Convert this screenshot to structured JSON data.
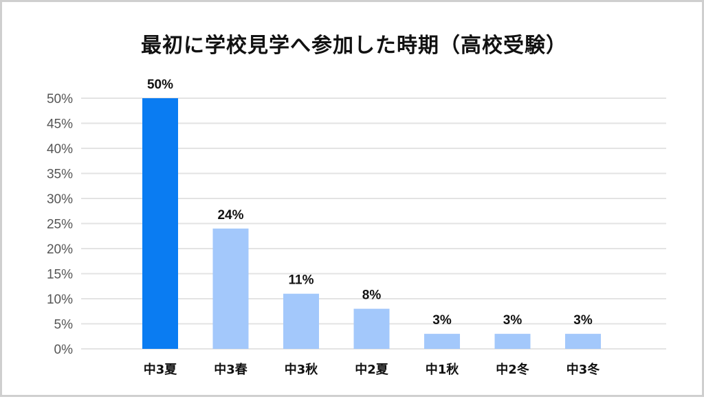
{
  "chart_data": {
    "type": "bar",
    "title": "最初に学校見学へ参加した時期（高校受験）",
    "categories": [
      "中3夏",
      "中3春",
      "中3秋",
      "中2夏",
      "中1秋",
      "中2冬",
      "中3冬"
    ],
    "values": [
      50,
      24,
      11,
      8,
      3,
      3,
      3
    ],
    "value_labels": [
      "50%",
      "24%",
      "11%",
      "8%",
      "3%",
      "3%",
      "3%"
    ],
    "y_ticks": [
      0,
      5,
      10,
      15,
      20,
      25,
      30,
      35,
      40,
      45,
      50
    ],
    "y_tick_labels": [
      "0%",
      "5%",
      "10%",
      "15%",
      "20%",
      "25%",
      "30%",
      "35%",
      "40%",
      "45%",
      "50%"
    ],
    "ylim": [
      0,
      50
    ],
    "grid": true,
    "legend": "none",
    "colors": {
      "highlight": "#0a7cf2",
      "bar": "#a3c8fb",
      "grid": "#e3e3e3"
    },
    "highlight_index": 0
  }
}
